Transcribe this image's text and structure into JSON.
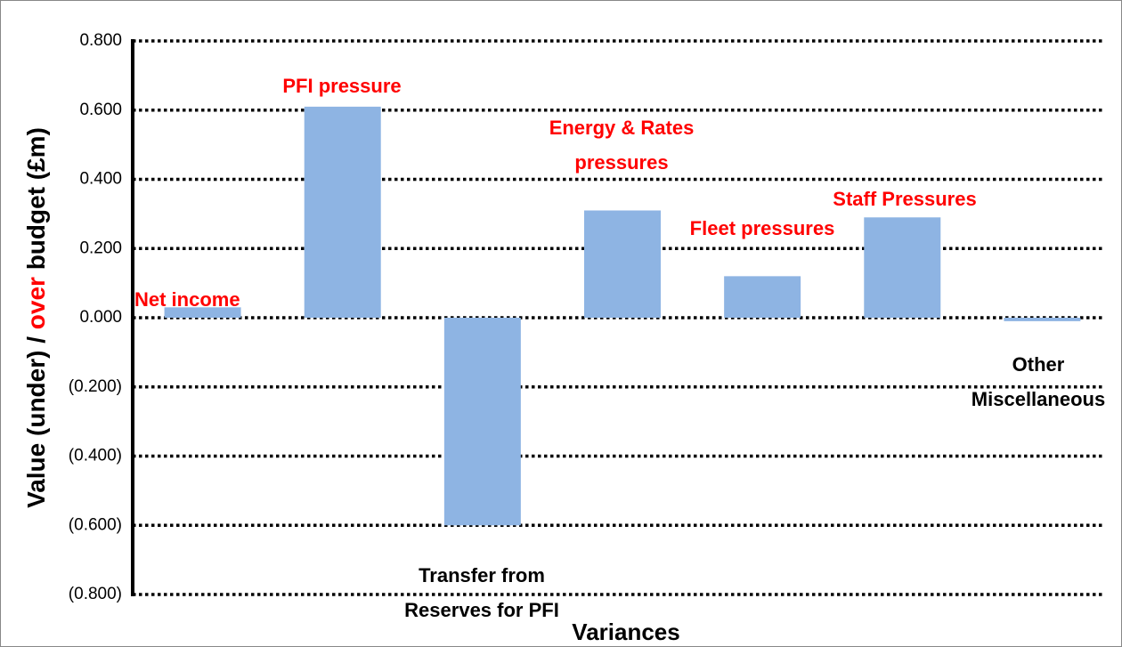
{
  "chart_data": {
    "type": "bar",
    "x_label": "Variances",
    "y_label_parts": [
      "Value (under) / ",
      "over",
      " budget (£m)"
    ],
    "categories": [
      "Net income",
      "PFI pressure",
      "Transfer from Reserves for PFI",
      "Energy & Rates pressures",
      "Fleet pressures",
      "Staff Pressures",
      "Other Miscellaneous"
    ],
    "values": [
      0.03,
      0.61,
      -0.6,
      0.31,
      0.12,
      0.29,
      -0.01
    ],
    "color": "#8eb4e3",
    "over_color": "#ff0000",
    "under_color": "#000000",
    "ylim": [
      -0.8,
      0.8
    ],
    "yticks": [
      {
        "value": -0.8,
        "label": "(0.800)"
      },
      {
        "value": -0.6,
        "label": "(0.600)"
      },
      {
        "value": -0.4,
        "label": "(0.400)"
      },
      {
        "value": -0.2,
        "label": "(0.200)"
      },
      {
        "value": 0,
        "label": "0.000"
      },
      {
        "value": 0.2,
        "label": "0.200"
      },
      {
        "value": 0.4,
        "label": "0.400"
      },
      {
        "value": 0.6,
        "label": "0.600"
      },
      {
        "value": 0.8,
        "label": "0.800"
      }
    ],
    "grid": true
  }
}
